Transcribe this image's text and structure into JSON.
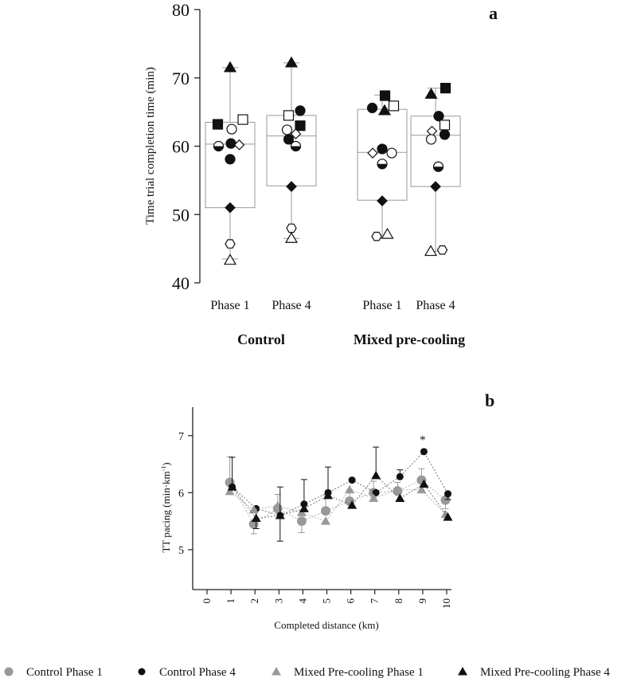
{
  "chart_data": [
    {
      "panel_label": "a",
      "type": "box",
      "ylabel": "Time trial completion time (min)",
      "ylim": [
        40,
        80
      ],
      "yticks": [
        40,
        50,
        60,
        70,
        80
      ],
      "groups": [
        {
          "name": "Control",
          "boxes": [
            {
              "label": "Phase 1",
              "min": 43.5,
              "q1": 51,
              "median": 60.3,
              "q3": 63.5,
              "max": 71.5,
              "points": [
                {
                  "s": "sq_f",
                  "v": 63.2,
                  "o": -1.55
                },
                {
                  "s": "sq_o",
                  "v": 63.9,
                  "o": 1.6
                },
                {
                  "s": "ci_o",
                  "v": 62.5,
                  "o": 0.2
                },
                {
                  "s": "ci_h",
                  "v": 60,
                  "o": -1.45
                },
                {
                  "s": "ci_f",
                  "v": 60.4,
                  "o": 0.1
                },
                {
                  "s": "di_o",
                  "v": 60.2,
                  "o": 1.15
                },
                {
                  "s": "ci_f",
                  "v": 58.1,
                  "o": 0
                },
                {
                  "s": "di_f",
                  "v": 51,
                  "o": 0
                },
                {
                  "s": "hex",
                  "v": 45.7,
                  "o": 0
                },
                {
                  "s": "tr_o",
                  "v": 43.3,
                  "o": 0
                },
                {
                  "s": "tr_f",
                  "v": 71.5,
                  "o": 0
                }
              ]
            },
            {
              "label": "Phase 4",
              "min": 46.5,
              "q1": 54.2,
              "median": 61.5,
              "q3": 64.5,
              "max": 72.2,
              "points": [
                {
                  "s": "tr_f",
                  "v": 72.2,
                  "o": 0
                },
                {
                  "s": "sq_o",
                  "v": 64.5,
                  "o": -0.35
                },
                {
                  "s": "ci_f",
                  "v": 65.2,
                  "o": 1.1
                },
                {
                  "s": "sq_f",
                  "v": 63,
                  "o": 1.1
                },
                {
                  "s": "ci_o",
                  "v": 62.4,
                  "o": -0.55
                },
                {
                  "s": "di_o",
                  "v": 61.8,
                  "o": 0.55
                },
                {
                  "s": "ci_f",
                  "v": 61,
                  "o": -0.35
                },
                {
                  "s": "ci_h",
                  "v": 60,
                  "o": 0.55
                },
                {
                  "s": "di_f",
                  "v": 54.1,
                  "o": 0
                },
                {
                  "s": "hex",
                  "v": 48,
                  "o": 0
                },
                {
                  "s": "tr_o",
                  "v": 46.5,
                  "o": 0
                }
              ]
            }
          ]
        },
        {
          "name": "Mixed pre-cooling",
          "boxes": [
            {
              "label": "Phase 1",
              "min": 47,
              "q1": 52.1,
              "median": 59.1,
              "q3": 65.4,
              "max": 67.5,
              "points": [
                {
                  "s": "sq_f",
                  "v": 67.4,
                  "o": 0.35
                },
                {
                  "s": "ci_f",
                  "v": 65.6,
                  "o": -1.25
                },
                {
                  "s": "tr_f",
                  "v": 65.2,
                  "o": 0.3
                },
                {
                  "s": "sq_o",
                  "v": 65.9,
                  "o": 1.45
                },
                {
                  "s": "ci_f",
                  "v": 59.6,
                  "o": 0
                },
                {
                  "s": "di_o",
                  "v": 59,
                  "o": -1.2
                },
                {
                  "s": "ci_o",
                  "v": 59,
                  "o": 1.2
                },
                {
                  "s": "ci_h",
                  "v": 57.4,
                  "o": 0
                },
                {
                  "s": "di_f",
                  "v": 52,
                  "o": 0
                },
                {
                  "s": "hex",
                  "v": 46.8,
                  "o": -0.7
                },
                {
                  "s": "tr_o",
                  "v": 47.1,
                  "o": 0.65
                }
              ]
            },
            {
              "label": "Phase 4",
              "min": 44.6,
              "q1": 54.1,
              "median": 61.6,
              "q3": 64.4,
              "max": 68.5,
              "points": [
                {
                  "s": "sq_f",
                  "v": 68.5,
                  "o": 1.25
                },
                {
                  "s": "tr_f",
                  "v": 67.6,
                  "o": -0.55
                },
                {
                  "s": "ci_f",
                  "v": 64.4,
                  "o": 0.4
                },
                {
                  "s": "di_o",
                  "v": 62.2,
                  "o": -0.45
                },
                {
                  "s": "sq_o",
                  "v": 63.1,
                  "o": 1.15
                },
                {
                  "s": "ci_o",
                  "v": 61,
                  "o": -0.55
                },
                {
                  "s": "ci_f",
                  "v": 61.7,
                  "o": 1.15
                },
                {
                  "s": "ci_h",
                  "v": 57,
                  "o": 0.35
                },
                {
                  "s": "di_f",
                  "v": 54.1,
                  "o": 0
                },
                {
                  "s": "tr_o",
                  "v": 44.6,
                  "o": -0.6
                },
                {
                  "s": "hex",
                  "v": 44.8,
                  "o": 0.85
                }
              ]
            }
          ]
        }
      ]
    },
    {
      "panel_label": "b",
      "type": "line",
      "xlabel": "Completed distance (km)",
      "ylabel_main": "TT pacing (min·km",
      "ylabel_sup": "-1",
      "ylabel_tail": ")",
      "xlim": [
        0,
        10
      ],
      "xticks": [
        0,
        1,
        2,
        3,
        4,
        5,
        6,
        7,
        8,
        9,
        10
      ],
      "ylim": [
        4.3,
        7.5
      ],
      "yticks": [
        5,
        6,
        7
      ],
      "annotation": {
        "text": "*",
        "x": 9,
        "y": 6.95
      },
      "series": [
        {
          "name": "Control Phase 1",
          "marker": "circle",
          "color": "#999999",
          "x": [
            1,
            2,
            3,
            4,
            5,
            6,
            7,
            8,
            9,
            10
          ],
          "y": [
            6.18,
            5.45,
            5.72,
            5.5,
            5.68,
            5.85,
            6,
            6.03,
            6.22,
            5.87
          ],
          "err": [
            0.45,
            0.17,
            0.25,
            0.2,
            0.28,
            0.2,
            0.2,
            0.15,
            0.2,
            0.15
          ]
        },
        {
          "name": "Control Phase 4",
          "marker": "circle",
          "color": "#111111",
          "x": [
            1,
            2,
            3,
            4,
            5,
            6,
            7,
            8,
            9,
            10
          ],
          "y": [
            6.1,
            5.72,
            5.6,
            5.8,
            6,
            6.22,
            6,
            6.28,
            6.72,
            5.98
          ],
          "err": [
            0.52,
            0.35,
            0.45,
            0.43,
            0.45,
            0,
            0,
            0.12,
            0,
            0.1
          ]
        },
        {
          "name": "Mixed Pre-cooling Phase 1",
          "marker": "triangle",
          "color": "#999999",
          "x": [
            1,
            2,
            3,
            4,
            5,
            6,
            7,
            8,
            9,
            10
          ],
          "y": [
            6.02,
            5.7,
            5.77,
            5.65,
            5.5,
            6.05,
            5.9,
            6.05,
            6.05,
            5.62
          ],
          "err": [
            0,
            0,
            0,
            0,
            0,
            0,
            0,
            0,
            0,
            0
          ]
        },
        {
          "name": "Mixed Pre-cooling Phase 4",
          "marker": "triangle",
          "color": "#111111",
          "x": [
            1,
            2,
            3,
            4,
            5,
            6,
            7,
            8,
            9,
            10
          ],
          "y": [
            6.1,
            5.55,
            5.6,
            5.72,
            5.95,
            5.78,
            6.3,
            5.9,
            6.15,
            5.57
          ],
          "err": [
            0,
            0,
            0.5,
            0,
            0,
            0,
            0.5,
            0,
            0,
            0
          ]
        }
      ],
      "legend_position": "bottom"
    }
  ]
}
